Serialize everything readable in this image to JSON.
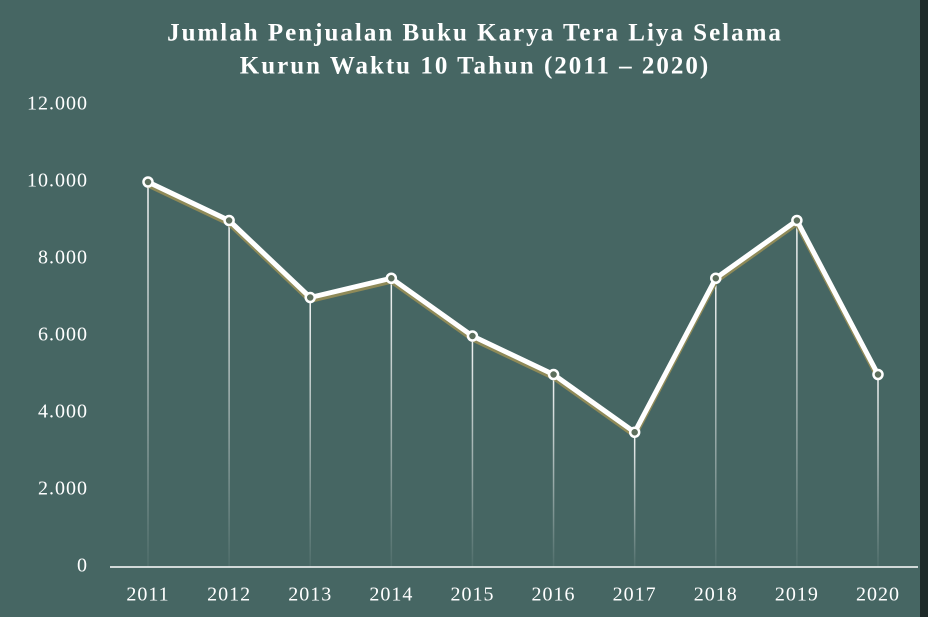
{
  "chart_data": {
    "type": "line",
    "title": [
      "Jumlah Penjualan Buku Karya Tera Liya Selama",
      "Kurun Waktu 10 Tahun (2011 – 2020)"
    ],
    "categories": [
      "2011",
      "2012",
      "2013",
      "2014",
      "2015",
      "2016",
      "2017",
      "2018",
      "2019",
      "2020"
    ],
    "series": [
      {
        "color": "#ffffff",
        "values": [
          10000,
          9000,
          7000,
          7500,
          6000,
          5000,
          3500,
          7500,
          9000,
          5000
        ]
      }
    ],
    "ylim": [
      0,
      12000
    ],
    "yticks": [
      0,
      {
        "value": 2000,
        "label": "2.000"
      },
      {
        "value": 4000,
        "label": "4.000"
      },
      {
        "value": 6000,
        "label": "6.000"
      },
      {
        "value": 8000,
        "label": "8.000"
      },
      {
        "value": 10000,
        "label": "10.000"
      },
      {
        "value": 12000,
        "label": "12.000"
      }
    ]
  }
}
